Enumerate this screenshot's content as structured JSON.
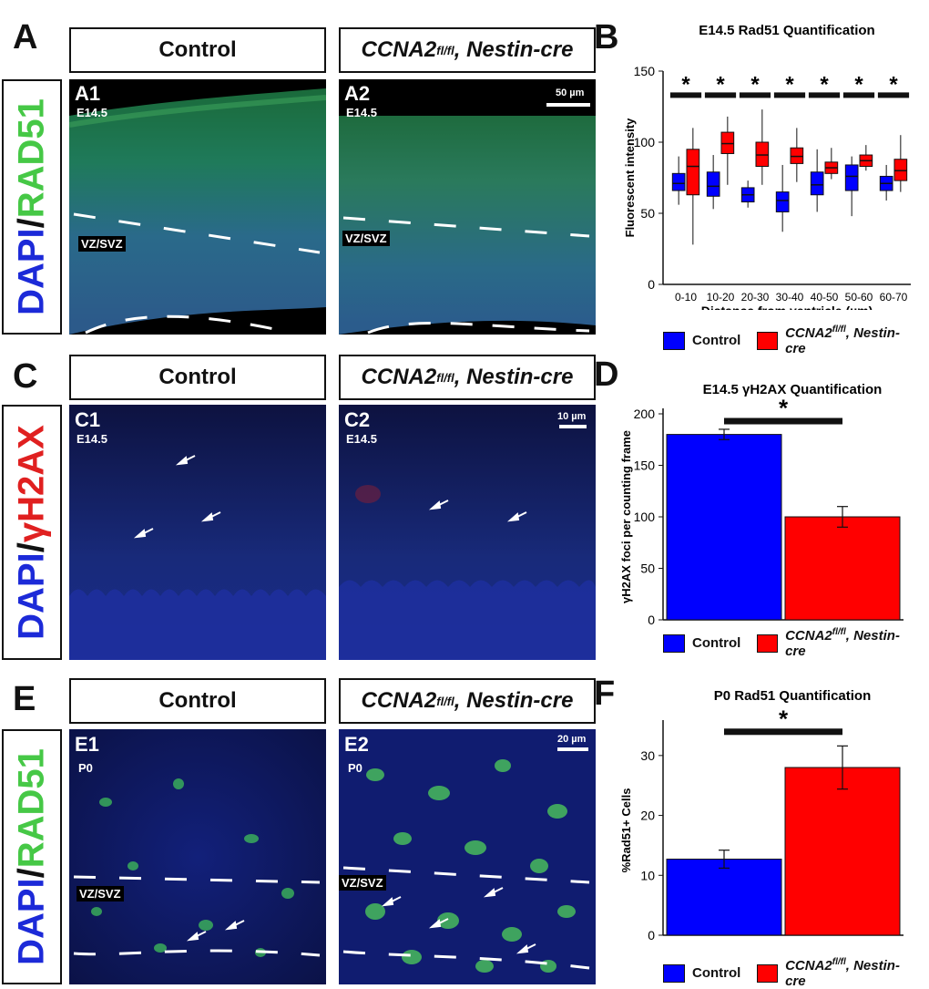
{
  "colors": {
    "control": "#0000ff",
    "mutant": "#ff0000",
    "green_stain": "#46c846",
    "dapi_blue": "#1c2ad8",
    "red_stain": "#e02020"
  },
  "panels": {
    "A": {
      "letter": "A",
      "header_control": "Control",
      "header_mutant": "CCNA2",
      "header_mutant_sup": "fl/fl",
      "header_mutant_tail": ", Nestin-cre",
      "side_label_dapi": "DAPI",
      "side_label_sep": "/",
      "side_label_marker": "RAD51",
      "img1": {
        "label": "A1",
        "sub": "E14.5",
        "region": "VZ/SVZ"
      },
      "img2": {
        "label": "A2",
        "sub": "E14.5",
        "region": "VZ/SVZ",
        "scale": "50 µm"
      }
    },
    "B": {
      "letter": "B"
    },
    "C": {
      "letter": "C",
      "header_control": "Control",
      "header_mutant": "CCNA2",
      "header_mutant_sup": "fl/fl",
      "header_mutant_tail": ", Nestin-cre",
      "side_label_dapi": "DAPI",
      "side_label_sep": "/",
      "side_label_marker": "γH2AX",
      "img1": {
        "label": "C1",
        "sub": "E14.5"
      },
      "img2": {
        "label": "C2",
        "sub": "E14.5",
        "scale": "10 µm"
      }
    },
    "D": {
      "letter": "D"
    },
    "E": {
      "letter": "E",
      "header_control": "Control",
      "header_mutant": "CCNA2",
      "header_mutant_sup": "fl/fl",
      "header_mutant_tail": ", Nestin-cre",
      "side_label_dapi": "DAPI",
      "side_label_sep": "/",
      "side_label_marker": "RAD51",
      "img1": {
        "label": "E1",
        "sub": "P0",
        "region": "VZ/SVZ"
      },
      "img2": {
        "label": "E2",
        "sub": "P0",
        "region": "VZ/SVZ",
        "scale": "20 µm"
      }
    },
    "F": {
      "letter": "F"
    }
  },
  "legend": {
    "control": "Control",
    "mutant": "CCNA2",
    "mutant_sup": "fl/fl",
    "mutant_tail": ", Nestin-cre"
  },
  "chart_data": [
    {
      "id": "B",
      "type": "box",
      "title": "E14.5 Rad51 Quantification",
      "xlabel": "Distance from ventricle (µm)",
      "ylabel": "Fluorescent intensity",
      "ylim": [
        0,
        150
      ],
      "yticks": [
        0,
        50,
        100,
        150
      ],
      "categories": [
        "0-10",
        "10-20",
        "20-30",
        "30-40",
        "40-50",
        "50-60",
        "60-70"
      ],
      "significance": [
        "*",
        "*",
        "*",
        "*",
        "*",
        "*",
        "*"
      ],
      "series": [
        {
          "name": "Control",
          "color": "#0000ff",
          "boxes": [
            {
              "min": 56,
              "q1": 66,
              "median": 71,
              "q3": 78,
              "max": 90
            },
            {
              "min": 53,
              "q1": 62,
              "median": 69,
              "q3": 79,
              "max": 91
            },
            {
              "min": 54,
              "q1": 58,
              "median": 63,
              "q3": 68,
              "max": 73
            },
            {
              "min": 37,
              "q1": 51,
              "median": 59,
              "q3": 65,
              "max": 84
            },
            {
              "min": 51,
              "q1": 63,
              "median": 70,
              "q3": 79,
              "max": 95
            },
            {
              "min": 48,
              "q1": 66,
              "median": 76,
              "q3": 84,
              "max": 90
            },
            {
              "min": 59,
              "q1": 66,
              "median": 71,
              "q3": 76,
              "max": 84
            }
          ]
        },
        {
          "name": "CCNA2fl/fl, Nestin-cre",
          "color": "#ff0000",
          "boxes": [
            {
              "min": 28,
              "q1": 63,
              "median": 83,
              "q3": 95,
              "max": 110
            },
            {
              "min": 70,
              "q1": 92,
              "median": 99,
              "q3": 107,
              "max": 118
            },
            {
              "min": 70,
              "q1": 83,
              "median": 91,
              "q3": 100,
              "max": 123
            },
            {
              "min": 72,
              "q1": 85,
              "median": 90,
              "q3": 96,
              "max": 110
            },
            {
              "min": 74,
              "q1": 78,
              "median": 82,
              "q3": 86,
              "max": 96
            },
            {
              "min": 80,
              "q1": 83,
              "median": 87,
              "q3": 91,
              "max": 98
            },
            {
              "min": 65,
              "q1": 73,
              "median": 80,
              "q3": 88,
              "max": 105
            }
          ]
        }
      ]
    },
    {
      "id": "D",
      "type": "bar",
      "title": "E14.5 γH2AX Quantification",
      "ylabel": "γH2AX foci per counting frame",
      "ylim": [
        0,
        200
      ],
      "yticks": [
        0,
        50,
        100,
        150,
        200
      ],
      "significance": "*",
      "series": [
        {
          "name": "Control",
          "value": 180,
          "err": 5,
          "color": "#0000ff"
        },
        {
          "name": "CCNA2fl/fl, Nestin-cre",
          "value": 100,
          "err": 10,
          "color": "#ff0000"
        }
      ]
    },
    {
      "id": "F",
      "type": "bar",
      "title": "P0 Rad51 Quantification",
      "ylabel": "%Rad51+ Cells",
      "ylim": [
        0,
        35
      ],
      "yticks": [
        0,
        10,
        20,
        30
      ],
      "significance": "*",
      "series": [
        {
          "name": "Control",
          "value": 12.7,
          "err": 1.5,
          "color": "#0000ff"
        },
        {
          "name": "CCNA2fl/fl, Nestin-cre",
          "value": 28.0,
          "err": 3.6,
          "color": "#ff0000"
        }
      ]
    }
  ]
}
